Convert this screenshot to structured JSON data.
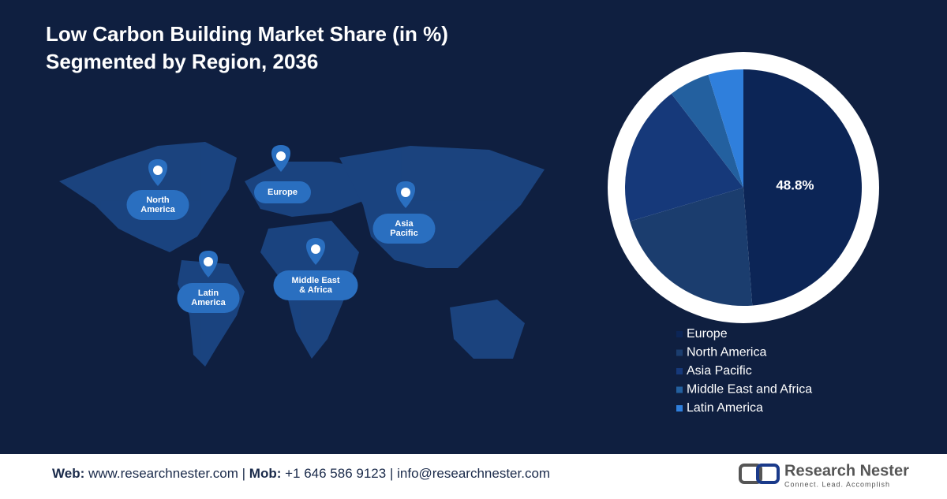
{
  "chart_data": {
    "type": "pie",
    "title": "Low Carbon Building Market Share (in %)",
    "subtitle": "Segmented by Region, 2036",
    "categories": [
      "Europe",
      "North America",
      "Asia Pacific",
      "Middle East and Africa",
      "Latin America"
    ],
    "values": [
      48.8,
      21.6,
      19.2,
      5.6,
      4.8
    ],
    "value_labels": [
      "48.8%",
      null,
      null,
      null,
      null
    ],
    "colors": [
      "#0c2556",
      "#1b3d6e",
      "#16397a",
      "#23609f",
      "#2f7fdc"
    ]
  },
  "map_labels": [
    [
      "North",
      "America"
    ],
    [
      "Europe"
    ],
    [
      "Asia",
      "Pacific"
    ],
    [
      "Latin",
      "America"
    ],
    [
      "Middle East",
      "& Africa"
    ]
  ],
  "footer": {
    "web_label": "Web:",
    "web": "www.researchnester.com",
    "sep1": "|",
    "mob_label": "Mob:",
    "mob": "+1 646 586 9123",
    "sep2": "|",
    "email": "info@researchnester.com"
  },
  "logo": {
    "name": "Research Nester",
    "tagline": "Connect. Lead. Accomplish"
  }
}
